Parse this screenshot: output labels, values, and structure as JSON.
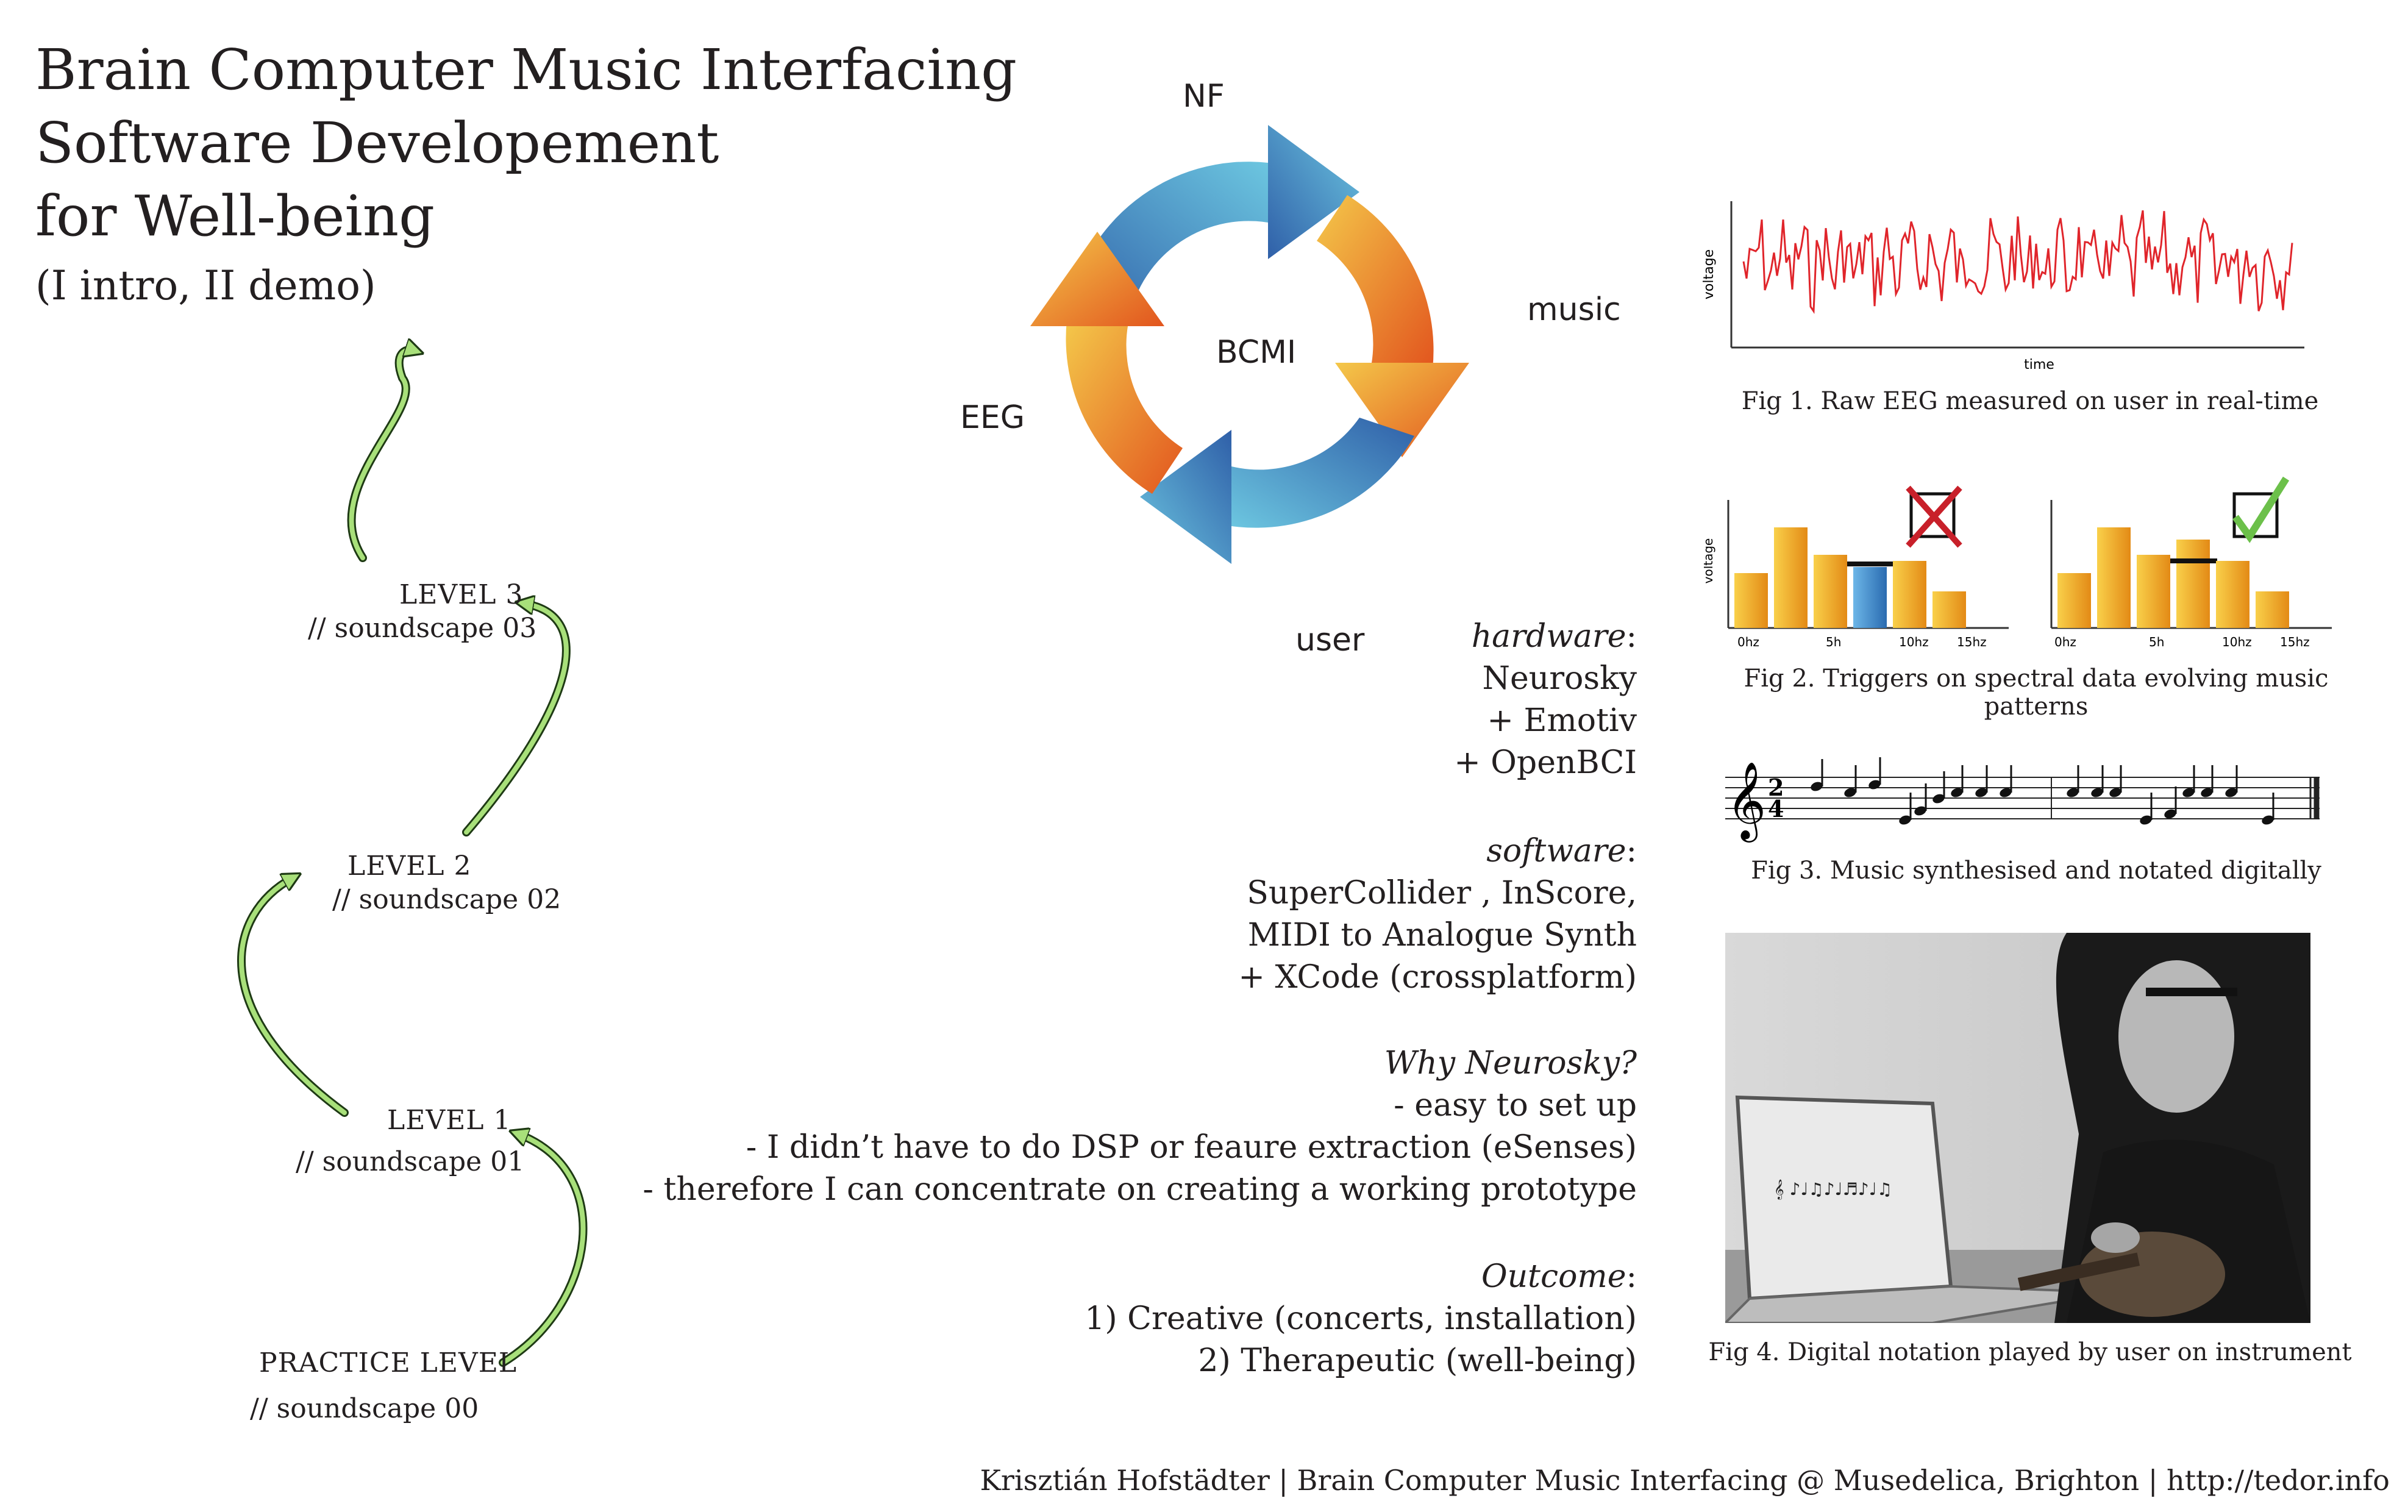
{
  "title": {
    "line1": "Brain Computer Music Interfacing",
    "line2": "Software Developement",
    "line3": "for Well-being",
    "subtitle": "(I intro, II demo)"
  },
  "levels": [
    {
      "name": "LEVEL 3",
      "soundscape": "// soundscape 03"
    },
    {
      "name": "LEVEL 2",
      "soundscape": "// soundscape 02"
    },
    {
      "name": "LEVEL 1",
      "soundscape": "// soundscape 01"
    },
    {
      "name": "PRACTICE LEVEL",
      "soundscape": "// soundscape 00"
    }
  ],
  "cycle": {
    "center": "BCMI",
    "top": "NF",
    "right": "music",
    "bottom": "user",
    "left": "EEG"
  },
  "hardware": {
    "heading": "hardware",
    "items": [
      "Neurosky",
      "+ Emotiv",
      "+ OpenBCI"
    ]
  },
  "software": {
    "heading": "software",
    "items": [
      "SuperCollider , InScore,",
      "MIDI to Analogue Synth",
      "+ XCode (crossplatform)"
    ]
  },
  "why": {
    "heading": "Why Neurosky?",
    "items": [
      "- easy to set up",
      "- I didn’t have  to do DSP or feaure extraction (eSenses)",
      "- therefore I can concentrate on creating a working prototype"
    ]
  },
  "outcome": {
    "heading": "Outcome",
    "items": [
      "1) Creative (concerts, installation)",
      "2) Therapeutic (well-being)"
    ]
  },
  "fig1": {
    "caption": "Fig 1. Raw EEG measured on user in real-time",
    "ylabel": "voltage",
    "xlabel": "time"
  },
  "fig2": {
    "caption": "Fig 2. Triggers on spectral data evolving music patterns",
    "ylabel": "voltage",
    "ticks": [
      "0hz",
      "5h",
      "10hz",
      "15hz"
    ]
  },
  "fig3": {
    "caption": "Fig 3. Music synthesised and notated digitally"
  },
  "fig4": {
    "caption": "Fig 4. Digital notation played by user on instrument"
  },
  "credit": "Krisztián Hofstädter | Brain Computer Music Interfacing @ Musedelica, Brighton | http://tedor.info",
  "colors": {
    "arrow_green": "#a8e07a",
    "eeg_red": "#e0252b",
    "bar_orange": "#f5a623",
    "bar_blue": "#3a86c8",
    "cross_red": "#c8202a",
    "check_green": "#6cc04a"
  }
}
